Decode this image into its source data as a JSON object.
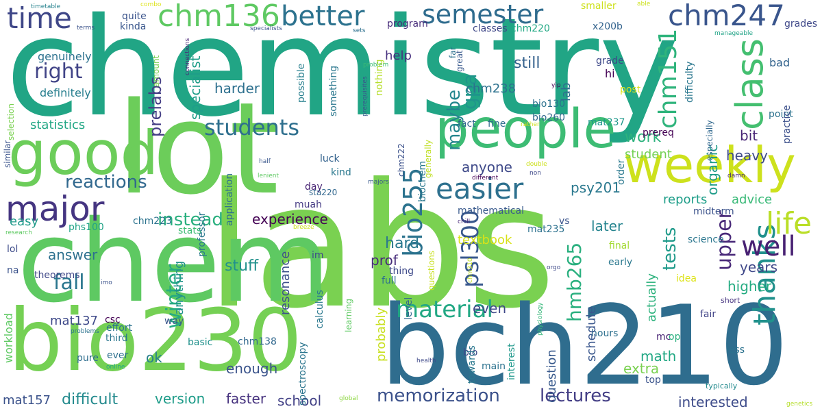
{
  "words": [
    {
      "text": "chemistry",
      "color": "#21a585",
      "rotate": false
    },
    {
      "text": "labs",
      "color": "#7ad151",
      "rotate": false
    },
    {
      "text": "lot",
      "color": "#6ccd5a",
      "rotate": false
    },
    {
      "text": "chem",
      "color": "#5ec962",
      "rotate": false
    },
    {
      "text": "bch210",
      "color": "#2f6d8e",
      "rotate": false
    },
    {
      "text": "bio230",
      "color": "#75d054",
      "rotate": false
    },
    {
      "text": "good",
      "color": "#6ccd5a",
      "rotate": false
    },
    {
      "text": "people",
      "color": "#3dbc74",
      "rotate": false
    },
    {
      "text": "weekly",
      "color": "#cde11d",
      "rotate": false
    },
    {
      "text": "chm247",
      "color": "#39558c",
      "rotate": false
    },
    {
      "text": "semester",
      "color": "#2f6c8e",
      "rotate": false
    },
    {
      "text": "chm136",
      "color": "#5ec962",
      "rotate": false
    },
    {
      "text": "better",
      "color": "#2c728e",
      "rotate": false
    },
    {
      "text": "time",
      "color": "#3f4788",
      "rotate": false
    },
    {
      "text": "major",
      "color": "#453581",
      "rotate": false
    },
    {
      "text": "easier",
      "color": "#2d708e",
      "rotate": false
    },
    {
      "text": "class",
      "color": "#44bf70",
      "rotate": true
    },
    {
      "text": "thanks",
      "color": "#21918c",
      "rotate": true
    },
    {
      "text": "chm151",
      "color": "#2fb47c",
      "rotate": true
    },
    {
      "text": "bio255",
      "color": "#2c738e",
      "rotate": true
    },
    {
      "text": "material",
      "color": "#22a884",
      "rotate": false
    },
    {
      "text": "well",
      "color": "#482173",
      "rotate": false
    },
    {
      "text": "life",
      "color": "#bade28",
      "rotate": false
    },
    {
      "text": "memorization",
      "color": "#3b518b",
      "rotate": false
    },
    {
      "text": "lectures",
      "color": "#433e85",
      "rotate": false
    },
    {
      "text": "students",
      "color": "#2e6f8e",
      "rotate": false
    },
    {
      "text": "right",
      "color": "#414487",
      "rotate": false
    },
    {
      "text": "reactions",
      "color": "#31688e",
      "rotate": false
    },
    {
      "text": "instead",
      "color": "#2ab07f",
      "rotate": false
    },
    {
      "text": "fall",
      "color": "#2a768e",
      "rotate": false
    },
    {
      "text": "psl300",
      "color": "#38588c",
      "rotate": true
    },
    {
      "text": "hmb265",
      "color": "#2ab07f",
      "rotate": true
    },
    {
      "text": "winter",
      "color": "#25ab82",
      "rotate": true
    },
    {
      "text": "tests",
      "color": "#1f9a8a",
      "rotate": true
    },
    {
      "text": "upper",
      "color": "#482878",
      "rotate": true
    },
    {
      "text": "gpa",
      "color": "#1f958b",
      "rotate": true
    },
    {
      "text": "maybe",
      "color": "#24868e",
      "rotate": true
    },
    {
      "text": "prelabs",
      "color": "#433d84",
      "rotate": true
    },
    {
      "text": "specialist",
      "color": "#1f9e89",
      "rotate": true
    },
    {
      "text": "experience",
      "color": "#440154",
      "rotate": false
    },
    {
      "text": "anyone",
      "color": "#3e4989",
      "rotate": false
    },
    {
      "text": "work",
      "color": "#2db27d",
      "rotate": false
    },
    {
      "text": "easy",
      "color": "#1f9a8a",
      "rotate": false
    },
    {
      "text": "hard",
      "color": "#2a788e",
      "rotate": false
    },
    {
      "text": "even",
      "color": "#3f4889",
      "rotate": false
    },
    {
      "text": "stuff",
      "color": "#21918c",
      "rotate": false
    },
    {
      "text": "answer",
      "color": "#2d708e",
      "rotate": false
    },
    {
      "text": "harder",
      "color": "#2d708e",
      "rotate": false
    },
    {
      "text": "statistics",
      "color": "#22a785",
      "rotate": false
    },
    {
      "text": "still",
      "color": "#34618d",
      "rotate": false
    },
    {
      "text": "chm238",
      "color": "#2c718e",
      "rotate": false
    },
    {
      "text": "lab",
      "color": "#2e6e8e",
      "rotate": true
    },
    {
      "text": "psy201",
      "color": "#2a788e",
      "rotate": false
    },
    {
      "text": "student",
      "color": "#74d055",
      "rotate": false
    },
    {
      "text": "heavy",
      "color": "#3e4a89",
      "rotate": false
    },
    {
      "text": "bit",
      "color": "#482576",
      "rotate": false
    },
    {
      "text": "organic",
      "color": "#1e9c89",
      "rotate": true
    },
    {
      "text": "reports",
      "color": "#1f9e89",
      "rotate": false
    },
    {
      "text": "advice",
      "color": "#38b977",
      "rotate": false
    },
    {
      "text": "later",
      "color": "#25848e",
      "rotate": false
    },
    {
      "text": "extra",
      "color": "#7ad151",
      "rotate": false
    },
    {
      "text": "math",
      "color": "#22a884",
      "rotate": false
    },
    {
      "text": "years",
      "color": "#3f4889",
      "rotate": false
    },
    {
      "text": "higher",
      "color": "#25ac82",
      "rotate": false
    },
    {
      "text": "interested",
      "color": "#3e4c8a",
      "rotate": false
    },
    {
      "text": "school",
      "color": "#424186",
      "rotate": false
    },
    {
      "text": "difficult",
      "color": "#238a8d",
      "rotate": false
    },
    {
      "text": "version",
      "color": "#1e9c89",
      "rotate": false
    },
    {
      "text": "faster",
      "color": "#46327e",
      "rotate": false
    },
    {
      "text": "enough",
      "color": "#3a538b",
      "rotate": false
    },
    {
      "text": "ok",
      "color": "#277f8e",
      "rotate": false
    },
    {
      "text": "mat137",
      "color": "#3e4989",
      "rotate": false
    },
    {
      "text": "mat157",
      "color": "#3b528b",
      "rotate": false
    },
    {
      "text": "prof",
      "color": "#472c7a",
      "rotate": false
    },
    {
      "text": "textbook",
      "color": "#d8e219",
      "rotate": false
    },
    {
      "text": "help",
      "color": "#46307e",
      "rotate": false
    },
    {
      "text": "genuinely",
      "color": "#2c718e",
      "rotate": false
    },
    {
      "text": "definitely",
      "color": "#277e8e",
      "rotate": false
    },
    {
      "text": "kinda",
      "color": "#39568c",
      "rotate": false
    },
    {
      "text": "quite",
      "color": "#3a538b",
      "rotate": false
    },
    {
      "text": "program",
      "color": "#472c7a",
      "rotate": false
    },
    {
      "text": "classes",
      "color": "#3f4788",
      "rotate": false
    },
    {
      "text": "chm220",
      "color": "#22a884",
      "rotate": false
    },
    {
      "text": "x200b",
      "color": "#33638d",
      "rotate": false
    },
    {
      "text": "grades",
      "color": "#3f4889",
      "rotate": false
    },
    {
      "text": "smaller",
      "color": "#cde11d",
      "rotate": false
    },
    {
      "text": "bad",
      "color": "#33638d",
      "rotate": false
    },
    {
      "text": "grade",
      "color": "#3e4989",
      "rotate": false
    },
    {
      "text": "hi",
      "color": "#440154",
      "rotate": false
    },
    {
      "text": "post",
      "color": "#dde318",
      "rotate": false
    },
    {
      "text": "bio130",
      "color": "#2c728e",
      "rotate": false
    },
    {
      "text": "bio260",
      "color": "#30698e",
      "rotate": false
    },
    {
      "text": "mat237",
      "color": "#1f988b",
      "rotate": false
    },
    {
      "text": "prereq",
      "color": "#440154",
      "rotate": false
    },
    {
      "text": "point",
      "color": "#2c728e",
      "rotate": false
    },
    {
      "text": "fact",
      "color": "#31688e",
      "rotate": false
    },
    {
      "text": "fine",
      "color": "#2e6e8e",
      "rotate": false
    },
    {
      "text": "kind",
      "color": "#2a788e",
      "rotate": false
    },
    {
      "text": "luck",
      "color": "#33628d",
      "rotate": false
    },
    {
      "text": "day",
      "color": "#482374",
      "rotate": false
    },
    {
      "text": "muah",
      "color": "#443983",
      "rotate": false
    },
    {
      "text": "sta220",
      "color": "#31678e",
      "rotate": false
    },
    {
      "text": "chm223",
      "color": "#2c738e",
      "rotate": false
    },
    {
      "text": "phs100",
      "color": "#20a386",
      "rotate": false
    },
    {
      "text": "mathematical",
      "color": "#38598c",
      "rotate": false
    },
    {
      "text": "mat235",
      "color": "#2c718e",
      "rotate": false
    },
    {
      "text": "vs",
      "color": "#3a538b",
      "rotate": false
    },
    {
      "text": "midterm",
      "color": "#3b528b",
      "rotate": false
    },
    {
      "text": "science",
      "color": "#2a768e",
      "rotate": false
    },
    {
      "text": "final",
      "color": "#a5db36",
      "rotate": false
    },
    {
      "text": "early",
      "color": "#2a788e",
      "rotate": false
    },
    {
      "text": "idea",
      "color": "#dde318",
      "rotate": false
    },
    {
      "text": "lol",
      "color": "#3e4c8a",
      "rotate": false
    },
    {
      "text": "na",
      "color": "#3b528b",
      "rotate": false
    },
    {
      "text": "theorems",
      "color": "#3f4788",
      "rotate": false
    },
    {
      "text": "thing",
      "color": "#3e4989",
      "rotate": false
    },
    {
      "text": "full",
      "color": "#2d708e",
      "rotate": false
    },
    {
      "text": "im",
      "color": "#3e4989",
      "rotate": false
    },
    {
      "text": "stats",
      "color": "#3dbc74",
      "rotate": false
    },
    {
      "text": "csc",
      "color": "#440154",
      "rotate": false
    },
    {
      "text": "effort",
      "color": "#2c728e",
      "rotate": false
    },
    {
      "text": "third",
      "color": "#2a768e",
      "rotate": false
    },
    {
      "text": "way",
      "color": "#39568c",
      "rotate": false
    },
    {
      "text": "basic",
      "color": "#21918c",
      "rotate": false
    },
    {
      "text": "chm138",
      "color": "#31688e",
      "rotate": false
    },
    {
      "text": "pure",
      "color": "#2e6e8e",
      "rotate": false
    },
    {
      "text": "ever",
      "color": "#2d708e",
      "rotate": false
    },
    {
      "text": "bio",
      "color": "#3e4a89",
      "rotate": false
    },
    {
      "text": "main",
      "color": "#2c728e",
      "rotate": false
    },
    {
      "text": "hours",
      "color": "#2d708e",
      "rotate": false
    },
    {
      "text": "mc",
      "color": "#482374",
      "rotate": false
    },
    {
      "text": "op",
      "color": "#2ab07f",
      "rotate": false
    },
    {
      "text": "top",
      "color": "#3a538b",
      "rotate": false
    },
    {
      "text": "less",
      "color": "#2c728e",
      "rotate": false
    },
    {
      "text": "fair",
      "color": "#414487",
      "rotate": false
    },
    {
      "text": "short",
      "color": "#46337f",
      "rotate": false
    },
    {
      "text": "typically",
      "color": "#238a8d",
      "rotate": false
    },
    {
      "text": "timetable",
      "color": "#26828e",
      "rotate": false
    },
    {
      "text": "terms",
      "color": "#3b528b",
      "rotate": false
    },
    {
      "text": "specialists",
      "color": "#3b528b",
      "rotate": false
    },
    {
      "text": "sets",
      "color": "#2d708e",
      "rotate": false
    },
    {
      "text": "manageable",
      "color": "#20a386",
      "rotate": false
    },
    {
      "text": "combo",
      "color": "#dde318",
      "rotate": false
    },
    {
      "text": "able",
      "color": "#cde11d",
      "rotate": false
    },
    {
      "text": "connections",
      "color": "#482475",
      "rotate": true
    },
    {
      "text": "problem",
      "color": "#3dbc74",
      "rotate": false
    },
    {
      "text": "yip",
      "color": "#440154",
      "rotate": false
    },
    {
      "text": "rather",
      "color": "#cde11d",
      "rotate": false
    },
    {
      "text": "double",
      "color": "#cde11d",
      "rotate": false
    },
    {
      "text": "non",
      "color": "#3e4989",
      "rotate": false
    },
    {
      "text": "half",
      "color": "#39568c",
      "rotate": false
    },
    {
      "text": "lenient",
      "color": "#5ec962",
      "rotate": false
    },
    {
      "text": "majors",
      "color": "#38598c",
      "rotate": false
    },
    {
      "text": "different",
      "color": "#440154",
      "rotate": false
    },
    {
      "text": "damn",
      "color": "#482878",
      "rotate": false
    },
    {
      "text": "chill",
      "color": "#482878",
      "rotate": false
    },
    {
      "text": "breeze",
      "color": "#cde11d",
      "rotate": false
    },
    {
      "text": "orgo",
      "color": "#3e4989",
      "rotate": false
    },
    {
      "text": "research",
      "color": "#5ec962",
      "rotate": false
    },
    {
      "text": "imo",
      "color": "#3b528b",
      "rotate": false
    },
    {
      "text": "problems",
      "color": "#2c728e",
      "rotate": false
    },
    {
      "text": "online",
      "color": "#22a884",
      "rotate": false
    },
    {
      "text": "health",
      "color": "#3e4989",
      "rotate": false
    },
    {
      "text": "global",
      "color": "#8fd744",
      "rotate": false
    },
    {
      "text": "genetics",
      "color": "#b5de2b",
      "rotate": false
    },
    {
      "text": "selection",
      "color": "#7ad151",
      "rotate": true
    },
    {
      "text": "similar",
      "color": "#3a538b",
      "rotate": true
    },
    {
      "text": "amount",
      "color": "#7ad151",
      "rotate": true
    },
    {
      "text": "workload",
      "color": "#5ec962",
      "rotate": true
    },
    {
      "text": "application",
      "color": "#2d708e",
      "rotate": true
    },
    {
      "text": "professor",
      "color": "#2a788e",
      "rotate": true
    },
    {
      "text": "possible",
      "color": "#277f8e",
      "rotate": true
    },
    {
      "text": "something",
      "color": "#2a778e",
      "rotate": true
    },
    {
      "text": "nothing",
      "color": "#b5de2b",
      "rotate": true
    },
    {
      "text": "far",
      "color": "#2d708e",
      "rotate": true
    },
    {
      "text": "great",
      "color": "#38588c",
      "rotate": true
    },
    {
      "text": "prerequisites",
      "color": "#39558c",
      "rotate": true
    },
    {
      "text": "generally",
      "color": "#c0df25",
      "rotate": true
    },
    {
      "text": "chm222",
      "color": "#3b518b",
      "rotate": true
    },
    {
      "text": "biochem",
      "color": "#2a788e",
      "rotate": true
    },
    {
      "text": "resonance",
      "color": "#3c508b",
      "rotate": true
    },
    {
      "text": "anything",
      "color": "#21918c",
      "rotate": true
    },
    {
      "text": "calculus",
      "color": "#2a788e",
      "rotate": true
    },
    {
      "text": "learning",
      "color": "#5ec962",
      "rotate": true
    },
    {
      "text": "questions",
      "color": "#c8e020",
      "rotate": true
    },
    {
      "text": "chm310",
      "color": "#c0df25",
      "rotate": true
    },
    {
      "text": "level",
      "color": "#31688e",
      "rotate": true
    },
    {
      "text": "spectroscopy",
      "color": "#2b758e",
      "rotate": true
    },
    {
      "text": "probably",
      "color": "#c8e020",
      "rotate": true
    },
    {
      "text": "interest",
      "color": "#1f988b",
      "rotate": true
    },
    {
      "text": "question",
      "color": "#38598c",
      "rotate": true
    },
    {
      "text": "schedule",
      "color": "#39568c",
      "rotate": true
    },
    {
      "text": "actually",
      "color": "#2db27d",
      "rotate": true
    },
    {
      "text": "towards",
      "color": "#2a788e",
      "rotate": true
    },
    {
      "text": "physiology",
      "color": "#35b779",
      "rotate": true
    },
    {
      "text": "order",
      "color": "#2a788e",
      "rotate": true
    },
    {
      "text": "difficulty",
      "color": "#2a778e",
      "rotate": true
    },
    {
      "text": "especially",
      "color": "#31688e",
      "rotate": true
    },
    {
      "text": "practice",
      "color": "#3c508b",
      "rotate": true
    }
  ]
}
